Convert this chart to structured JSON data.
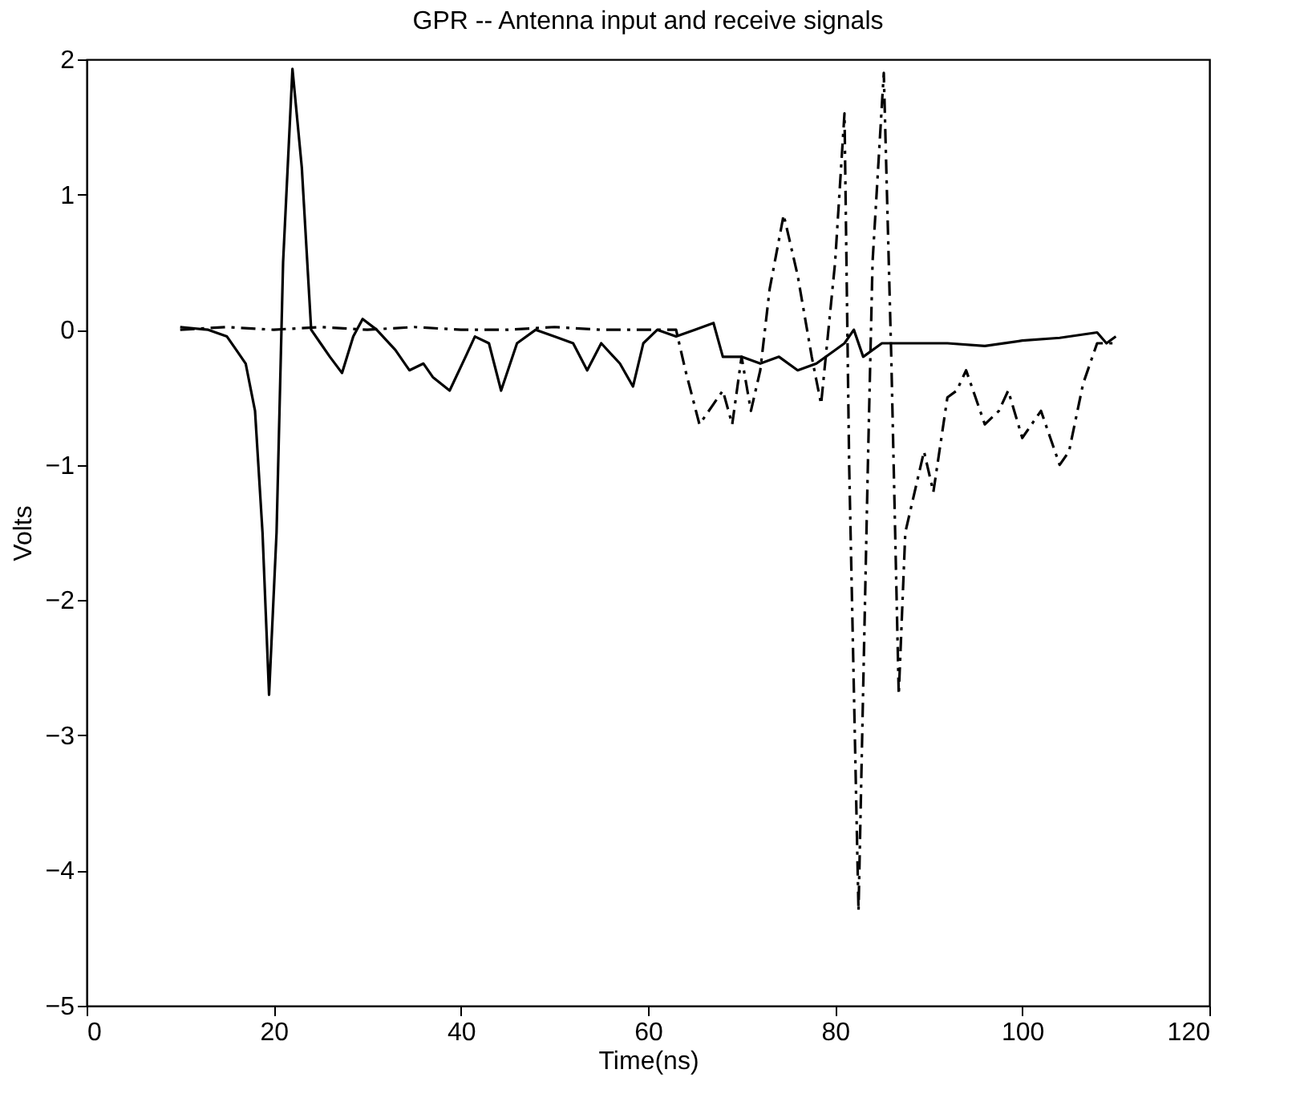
{
  "chart_data": {
    "type": "line",
    "title": "GPR -- Antenna input and receive signals",
    "xlabel": "Time(ns)",
    "ylabel": "Volts",
    "xlim": [
      0,
      120
    ],
    "xticks": [
      0,
      20,
      40,
      60,
      80,
      100,
      120
    ],
    "ylim": [
      -5,
      2
    ],
    "yticks": [
      -5,
      -4,
      -3,
      -2,
      -1,
      0,
      1,
      2
    ],
    "grid": false,
    "series": [
      {
        "color": "#000000",
        "line_style": "solid",
        "x": [
          10,
          13,
          15,
          16,
          17,
          18,
          18.8,
          19.5,
          20.3,
          21,
          22,
          23,
          24,
          25,
          26,
          27.3,
          28.5,
          29.5,
          31,
          33,
          34.5,
          36,
          37,
          38.8,
          40.5,
          41.5,
          43,
          44.3,
          46,
          48,
          50,
          52,
          53.5,
          55,
          57,
          58.4,
          59.5,
          61,
          63,
          65,
          67,
          68,
          70,
          72,
          74,
          76,
          78,
          80,
          81,
          82,
          83,
          85,
          88,
          92,
          96,
          100,
          104,
          108,
          109,
          110
        ],
        "values": [
          0.02,
          0.0,
          -0.05,
          -0.15,
          -0.25,
          -0.6,
          -1.5,
          -2.7,
          -1.5,
          0.5,
          1.93,
          1.2,
          0.0,
          -0.1,
          -0.2,
          -0.32,
          -0.05,
          0.08,
          0.0,
          -0.15,
          -0.3,
          -0.25,
          -0.35,
          -0.45,
          -0.2,
          -0.05,
          -0.1,
          -0.45,
          -0.1,
          0.0,
          -0.05,
          -0.1,
          -0.3,
          -0.1,
          -0.25,
          -0.42,
          -0.1,
          0.0,
          -0.05,
          0.0,
          0.05,
          -0.2,
          -0.2,
          -0.25,
          -0.2,
          -0.3,
          -0.25,
          -0.15,
          -0.1,
          0.0,
          -0.2,
          -0.1,
          -0.1,
          -0.1,
          -0.12,
          -0.08,
          -0.06,
          -0.02,
          -0.1,
          -0.05
        ]
      },
      {
        "color": "#000000",
        "line_style": "dashed",
        "x": [
          10,
          15,
          20,
          25,
          30,
          35,
          40,
          45,
          50,
          55,
          60,
          63,
          64,
          65.5,
          67,
          68,
          69,
          70,
          71,
          72,
          73,
          74.5,
          76,
          77.5,
          78.5,
          80,
          81,
          81.5,
          82.5,
          83.5,
          84,
          85.2,
          86,
          86.8,
          87.5,
          88.5,
          89.5,
          90.5,
          92,
          93,
          94,
          96,
          97.5,
          98.5,
          100,
          102,
          104,
          105,
          106.5,
          108,
          110
        ],
        "values": [
          0.0,
          0.02,
          0.0,
          0.02,
          0.0,
          0.02,
          0.0,
          0.0,
          0.02,
          0.0,
          0.0,
          0.0,
          -0.3,
          -0.7,
          -0.55,
          -0.45,
          -0.7,
          -0.2,
          -0.6,
          -0.3,
          0.3,
          0.85,
          0.4,
          -0.2,
          -0.55,
          0.5,
          1.6,
          -1.0,
          -4.3,
          -1.0,
          0.5,
          1.9,
          -0.2,
          -2.7,
          -1.5,
          -1.2,
          -0.9,
          -1.2,
          -0.5,
          -0.45,
          -0.3,
          -0.7,
          -0.6,
          -0.45,
          -0.8,
          -0.6,
          -1.0,
          -0.9,
          -0.4,
          -0.1,
          -0.1
        ]
      }
    ]
  }
}
